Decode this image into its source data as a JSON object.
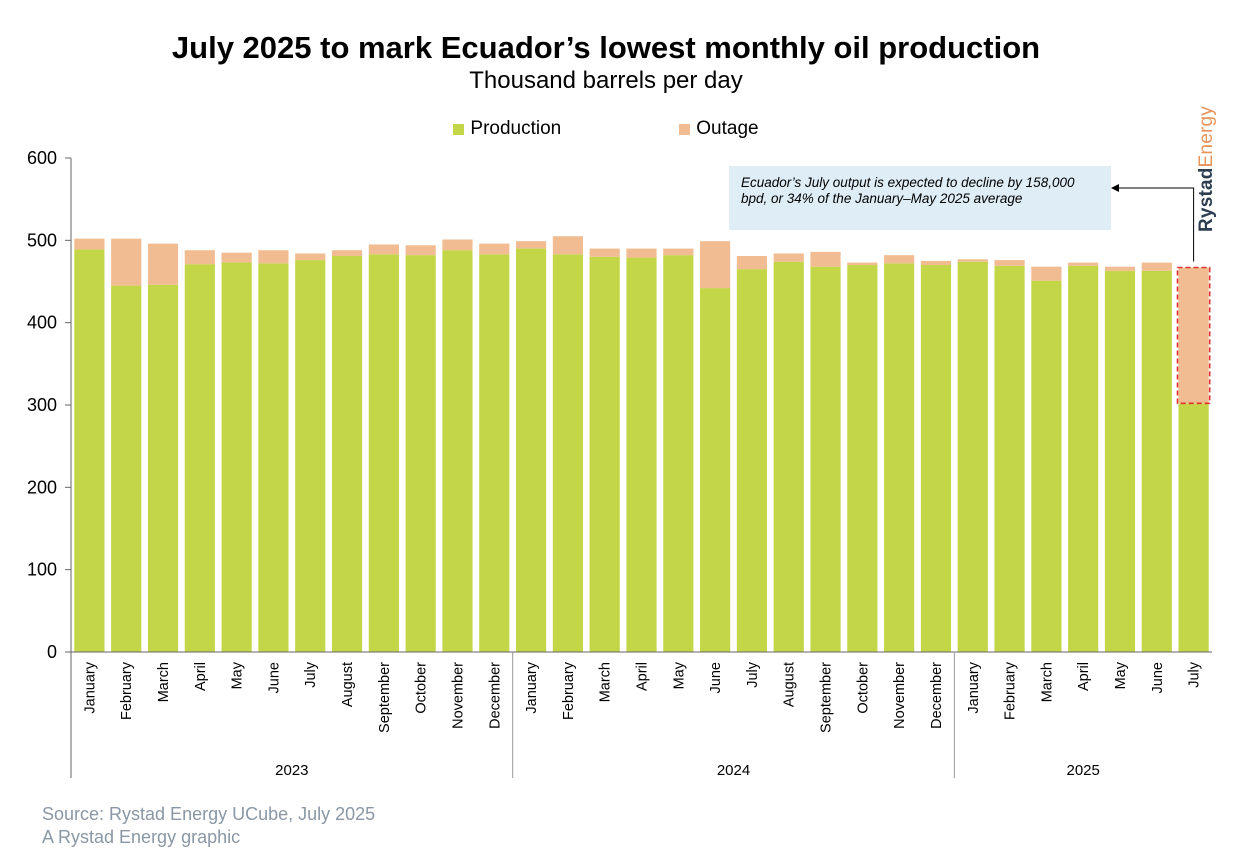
{
  "chart_data": {
    "type": "bar",
    "stacked": true,
    "title": "July 2025 to mark Ecuador’s lowest monthly oil production",
    "subtitle": "Thousand barrels per day",
    "ylim": [
      0,
      600
    ],
    "yticks": [
      0,
      100,
      200,
      300,
      400,
      500,
      600
    ],
    "legend_position": "top-center",
    "categories": [
      "January",
      "February",
      "March",
      "April",
      "May",
      "June",
      "July",
      "August",
      "September",
      "October",
      "November",
      "December",
      "January",
      "February",
      "March",
      "April",
      "May",
      "June",
      "July",
      "August",
      "September",
      "October",
      "November",
      "December",
      "January",
      "February",
      "March",
      "April",
      "May",
      "June",
      "July"
    ],
    "groups": [
      {
        "label": "2023",
        "count": 12
      },
      {
        "label": "2024",
        "count": 12
      },
      {
        "label": "2025",
        "count": 7
      }
    ],
    "series": [
      {
        "name": "Production",
        "color": "#c3d648",
        "values": [
          489,
          445,
          446,
          471,
          473,
          472,
          476,
          481,
          483,
          482,
          488,
          483,
          490,
          483,
          480,
          479,
          482,
          442,
          465,
          474,
          468,
          470,
          472,
          470,
          474,
          469,
          451,
          469,
          463,
          463,
          302
        ]
      },
      {
        "name": "Outage",
        "color": "#f1bc91",
        "values": [
          13,
          57,
          50,
          17,
          12,
          16,
          8,
          7,
          12,
          12,
          13,
          13,
          9,
          22,
          10,
          11,
          8,
          57,
          16,
          10,
          18,
          3,
          10,
          5,
          3,
          7,
          17,
          4,
          5,
          10,
          165
        ]
      }
    ],
    "annotation": "Ecuador’s July output is expected to decline by 158,000 bpd, or 34% of the January–May 2025 average"
  },
  "brand": {
    "part1": "Rystad",
    "part2": "Energy"
  },
  "source": {
    "line1": "Source: Rystad Energy UCube, July 2025",
    "line2": "A Rystad Energy graphic"
  }
}
